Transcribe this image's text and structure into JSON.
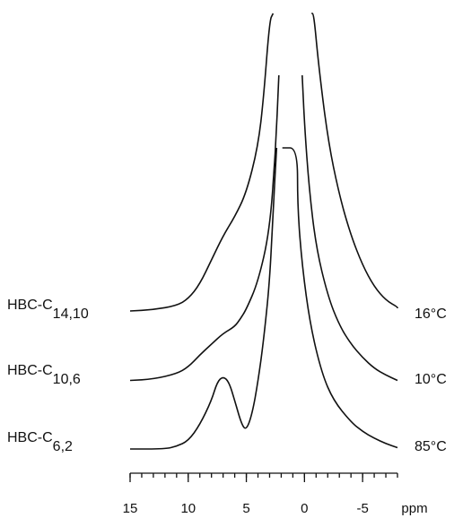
{
  "chart_data": {
    "type": "line",
    "xlabel": "ppm",
    "x_reversed": true,
    "xlim": [
      15,
      -8
    ],
    "xticks": [
      15,
      10,
      5,
      0,
      -5
    ],
    "xticklabels": [
      "15",
      "10",
      "5",
      "0",
      "-5"
    ],
    "minor_tick_step": 1,
    "series": [
      {
        "name_prefix": "HBC-C",
        "name_sub": "14,10",
        "temperature": "16°C",
        "offset": 2,
        "points": [
          [
            15,
            0.2
          ],
          [
            13,
            0.25
          ],
          [
            11,
            0.4
          ],
          [
            10,
            0.65
          ],
          [
            9,
            1.2
          ],
          [
            8,
            2.1
          ],
          [
            7,
            3.0
          ],
          [
            6,
            3.7
          ],
          [
            5,
            4.6
          ],
          [
            4,
            6.3
          ],
          [
            3.5,
            8.2
          ],
          [
            3,
            11.0
          ],
          [
            2.7,
            14.5
          ],
          [
            -0.6,
            14.5
          ],
          [
            -0.8,
            12.0
          ],
          [
            -1.2,
            9.4
          ],
          [
            -2,
            6.6
          ],
          [
            -3,
            4.5
          ],
          [
            -4,
            3.0
          ],
          [
            -5,
            1.9
          ],
          [
            -6,
            1.1
          ],
          [
            -7,
            0.6
          ],
          [
            -8,
            0.35
          ],
          [
            -8,
            0.3
          ]
        ]
      },
      {
        "name_prefix": "HBC-C",
        "name_sub": "10,6",
        "temperature": "10°C",
        "offset": 1,
        "points": [
          [
            15,
            0.05
          ],
          [
            13,
            0.1
          ],
          [
            11,
            0.3
          ],
          [
            10,
            0.55
          ],
          [
            9,
            1.0
          ],
          [
            8,
            1.4
          ],
          [
            7,
            1.8
          ],
          [
            6,
            2.05
          ],
          [
            5.5,
            2.35
          ],
          [
            5,
            2.7
          ],
          [
            4,
            3.7
          ],
          [
            3,
            5.6
          ],
          [
            2.5,
            8.5
          ],
          [
            2.2,
            11.4
          ],
          [
            0.2,
            11.4
          ],
          [
            0,
            9.6
          ],
          [
            -0.4,
            7.2
          ],
          [
            -1,
            5.0
          ],
          [
            -2,
            3.2
          ],
          [
            -3,
            2.1
          ],
          [
            -4,
            1.4
          ],
          [
            -5,
            0.9
          ],
          [
            -6,
            0.5
          ],
          [
            -7,
            0.25
          ],
          [
            -8,
            0.05
          ]
        ]
      },
      {
        "name_prefix": "HBC-C",
        "name_sub": "6,2",
        "temperature": "85°C",
        "offset": 0,
        "points": [
          [
            15,
            0.0
          ],
          [
            12,
            0.0
          ],
          [
            11,
            0.1
          ],
          [
            10,
            0.3
          ],
          [
            9,
            0.9
          ],
          [
            8,
            1.8
          ],
          [
            7.5,
            2.5
          ],
          [
            7,
            2.7
          ],
          [
            6.5,
            2.5
          ],
          [
            6,
            1.8
          ],
          [
            5.4,
            0.9
          ],
          [
            5,
            0.7
          ],
          [
            4.5,
            1.3
          ],
          [
            4,
            2.5
          ],
          [
            3.5,
            4.1
          ],
          [
            3,
            6.2
          ],
          [
            2.7,
            8.8
          ],
          [
            2.4,
            11.2
          ],
          [
            1.9,
            11.2
          ],
          [
            0.6,
            11.2
          ],
          [
            0.6,
            9.0
          ],
          [
            0.2,
            6.8
          ],
          [
            -0.5,
            4.6
          ],
          [
            -1.5,
            2.8
          ],
          [
            -2.5,
            1.8
          ],
          [
            -4,
            1.0
          ],
          [
            -5,
            0.65
          ],
          [
            -6,
            0.4
          ],
          [
            -7,
            0.2
          ],
          [
            -8,
            0.05
          ]
        ]
      }
    ]
  }
}
